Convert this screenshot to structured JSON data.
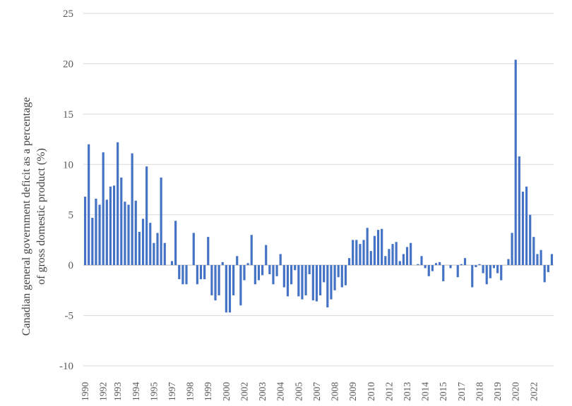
{
  "chart_data": {
    "type": "bar",
    "title": "",
    "xlabel": "",
    "ylabel_line1": "Canadian general government deficit as a percentage",
    "ylabel_line2": "of gross domestic product (%)",
    "ylim": [
      -10,
      25
    ],
    "yticks": [
      -10,
      -5,
      0,
      5,
      10,
      15,
      20,
      25
    ],
    "grid": true,
    "legend": "none",
    "bar_color": "#4472c4",
    "x_tick_labels": [
      {
        "label": "1990",
        "index": 0
      },
      {
        "label": "1992",
        "index": 5
      },
      {
        "label": "1993",
        "index": 9
      },
      {
        "label": "1994",
        "index": 14
      },
      {
        "label": "1995",
        "index": 19
      },
      {
        "label": "1997",
        "index": 24
      },
      {
        "label": "1998",
        "index": 29
      },
      {
        "label": "1999",
        "index": 34
      },
      {
        "label": "2000",
        "index": 39
      },
      {
        "label": "2002",
        "index": 44
      },
      {
        "label": "2003",
        "index": 49
      },
      {
        "label": "2004",
        "index": 54
      },
      {
        "label": "2005",
        "index": 59
      },
      {
        "label": "2007",
        "index": 64
      },
      {
        "label": "2008",
        "index": 69
      },
      {
        "label": "2009",
        "index": 74
      },
      {
        "label": "2010",
        "index": 79
      },
      {
        "label": "2012",
        "index": 84
      },
      {
        "label": "2013",
        "index": 89
      },
      {
        "label": "2014",
        "index": 94
      },
      {
        "label": "2015",
        "index": 99
      },
      {
        "label": "2017",
        "index": 104
      },
      {
        "label": "2018",
        "index": 109
      },
      {
        "label": "2019",
        "index": 114
      },
      {
        "label": "2020",
        "index": 119
      },
      {
        "label": "2022",
        "index": 124
      }
    ],
    "values": [
      6.8,
      12.0,
      4.7,
      6.6,
      6.0,
      11.2,
      6.5,
      7.8,
      7.9,
      12.2,
      8.7,
      6.3,
      6.0,
      11.1,
      6.4,
      3.3,
      4.6,
      9.8,
      4.2,
      2.2,
      3.2,
      8.7,
      2.2,
      0.0,
      0.4,
      4.4,
      -1.4,
      -1.9,
      -1.9,
      0.0,
      3.2,
      -1.9,
      -1.4,
      -1.4,
      2.8,
      -3.0,
      -3.5,
      -3.0,
      0.3,
      -4.7,
      -4.7,
      -3.0,
      0.9,
      -4.0,
      -1.5,
      0.2,
      3.0,
      -1.9,
      -1.5,
      -1.0,
      2.0,
      -0.9,
      -1.9,
      -1.1,
      1.1,
      -2.2,
      -3.1,
      -1.9,
      -0.5,
      -3.1,
      -3.4,
      -3.0,
      -0.9,
      -3.5,
      -3.6,
      -3.0,
      -1.7,
      -4.2,
      -3.4,
      -2.5,
      -1.2,
      -2.2,
      -2.0,
      0.7,
      2.5,
      2.5,
      2.1,
      2.5,
      3.7,
      1.4,
      2.9,
      3.5,
      3.6,
      0.9,
      1.6,
      2.1,
      2.3,
      0.4,
      1.1,
      1.8,
      2.2,
      0.0,
      0.1,
      0.9,
      -0.3,
      -1.1,
      -0.6,
      0.2,
      0.3,
      -1.6,
      0.0,
      -0.3,
      0.0,
      -1.2,
      0.1,
      0.7,
      0.0,
      -2.2,
      -0.2,
      0.1,
      -0.8,
      -1.9,
      -1.3,
      -0.3,
      -0.8,
      -1.5,
      0.0,
      0.6,
      3.2,
      20.4,
      10.8,
      7.3,
      7.8,
      5.0,
      2.8,
      1.1,
      1.5,
      -1.7,
      -0.7,
      1.1
    ]
  }
}
